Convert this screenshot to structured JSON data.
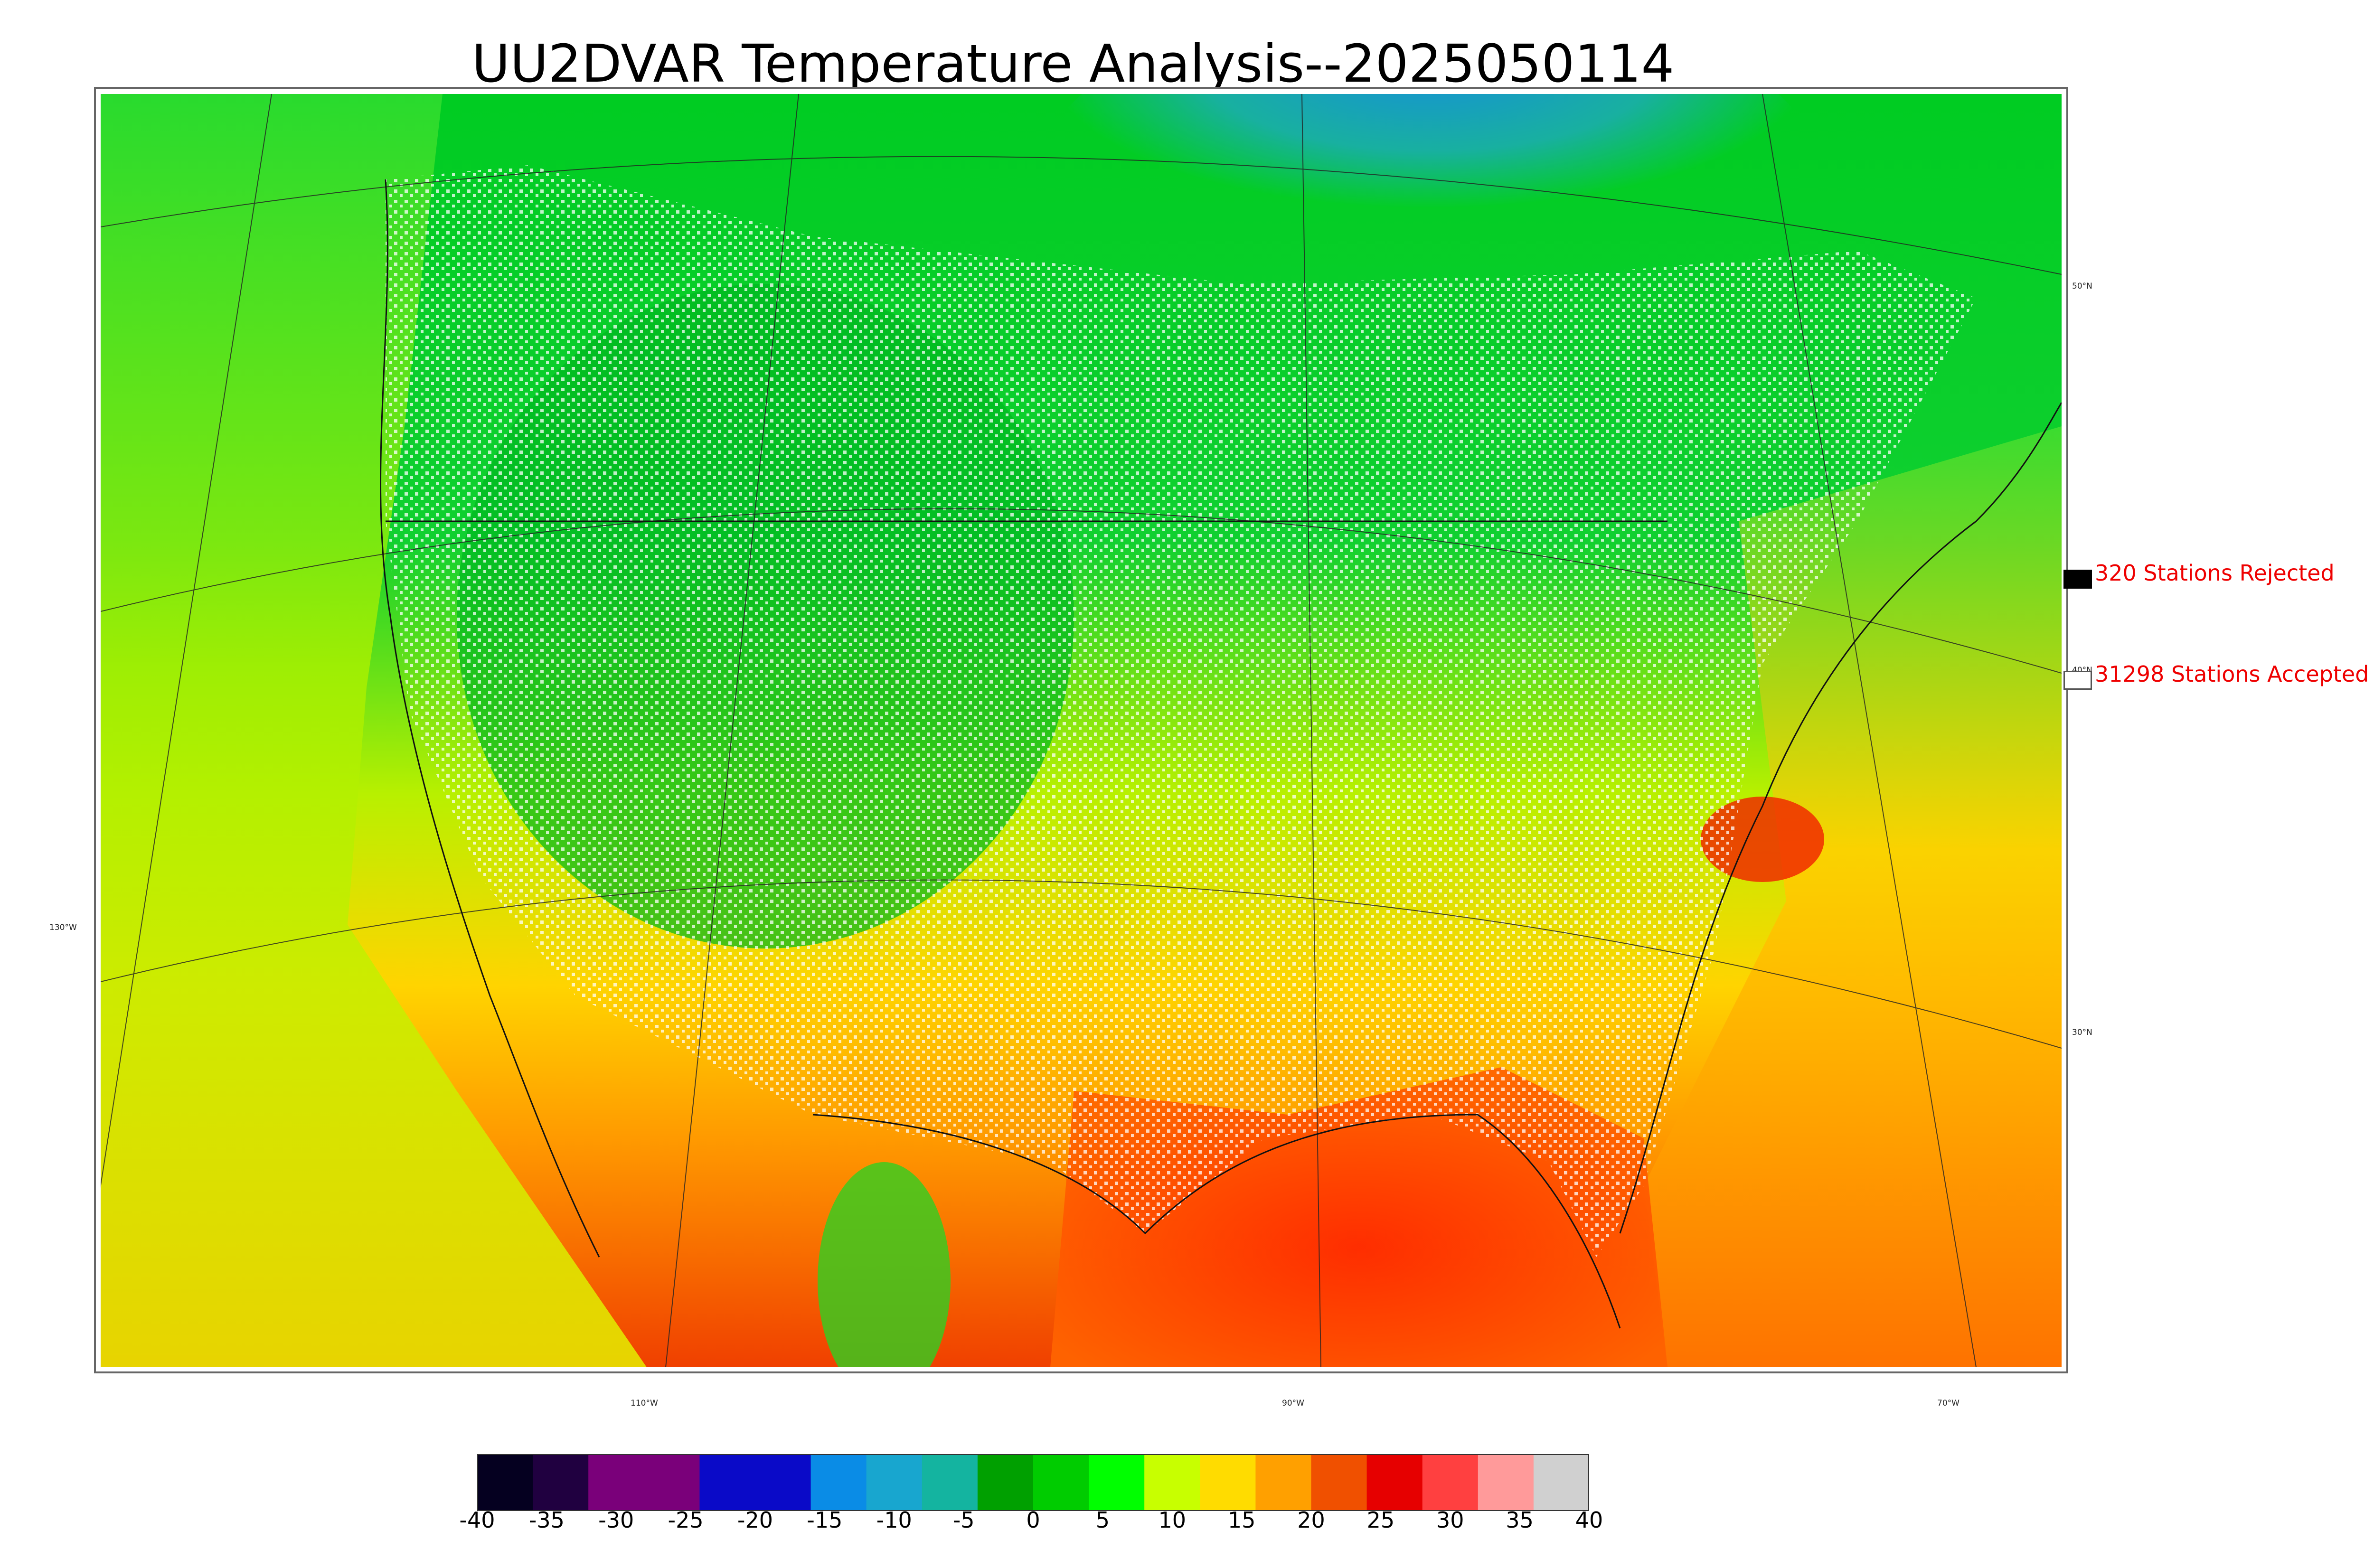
{
  "title": "UU2DVAR Temperature Analysis--2025050114",
  "legend": {
    "rejected": "320 Stations Rejected",
    "accepted": "31298 Stations Accepted",
    "rejected_color": "#000000",
    "accepted_color": "#ffffff",
    "text_color": "#ee0000"
  },
  "map": {
    "lat_labels": [
      "50°N",
      "40°N",
      "30°N"
    ],
    "lon_labels": [
      "130°W",
      "110°W",
      "90°W",
      "70°W"
    ]
  },
  "colorbar": {
    "ticks": [
      "-40",
      "-35",
      "-30",
      "-25",
      "-20",
      "-15",
      "-10",
      "-5",
      "0",
      "5",
      "10",
      "15",
      "20",
      "25",
      "30",
      "35",
      "40"
    ],
    "colors": [
      "#050020",
      "#200040",
      "#7a007a",
      "#7a007a",
      "#0a0ac8",
      "#0a0ac8",
      "#0a8ce6",
      "#18a6cf",
      "#14b4a0",
      "#00a000",
      "#00cc00",
      "#00ff00",
      "#c8ff00",
      "#ffdc00",
      "#ffa000",
      "#f05000",
      "#e60000",
      "#ff4040",
      "#ff9a9a",
      "#d0d0d0"
    ]
  }
}
